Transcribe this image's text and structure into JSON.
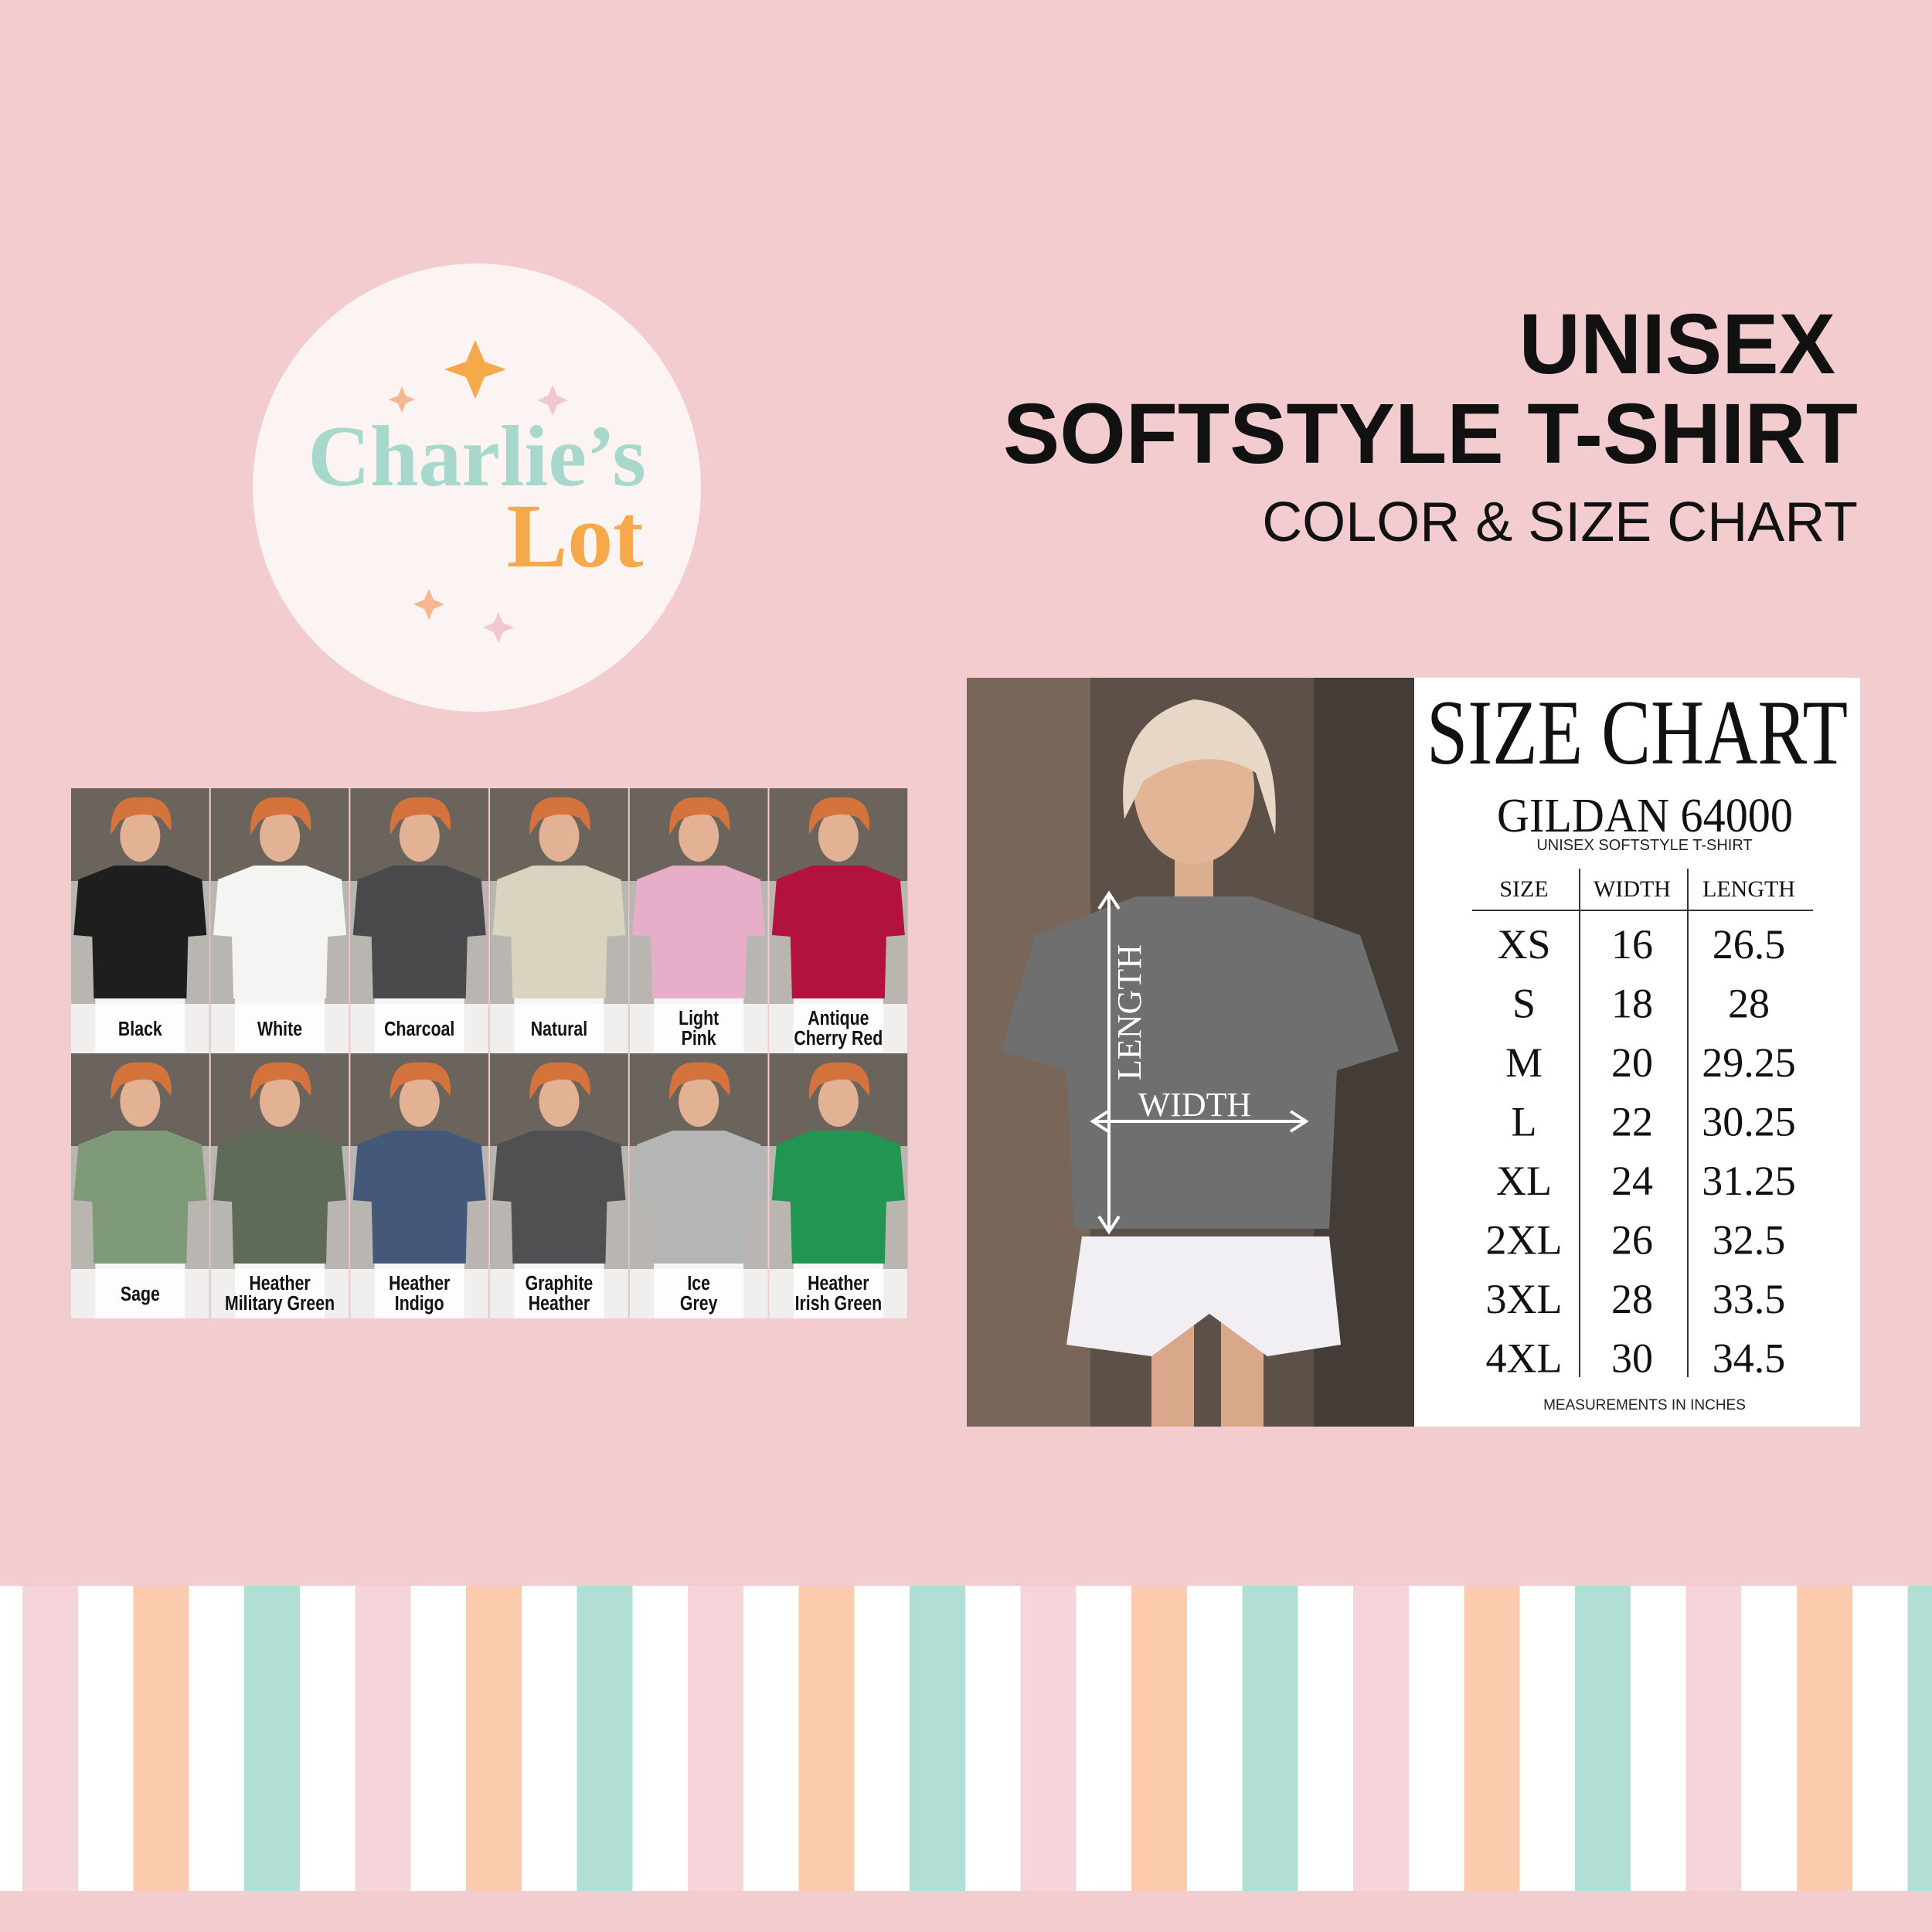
{
  "header": {
    "title_lines": [
      "UNISEX",
      "SOFTSTYLE T-SHIRT"
    ],
    "subtitle": "COLOR & SIZE CHART"
  },
  "logo": {
    "line1": "Charlie’s",
    "line2": "Lot"
  },
  "colors": [
    {
      "label": [
        "Black"
      ],
      "color": "#1e1e1e"
    },
    {
      "label": [
        "White"
      ],
      "color": "#f4f4f2"
    },
    {
      "label": [
        "Charcoal"
      ],
      "color": "#4a4a4c"
    },
    {
      "label": [
        "Natural"
      ],
      "color": "#d9d4c0"
    },
    {
      "label": [
        "Light",
        "Pink"
      ],
      "color": "#e6aec8"
    },
    {
      "label": [
        "Antique",
        "Cherry Red"
      ],
      "color": "#b3123f"
    },
    {
      "label": [
        "Sage"
      ],
      "color": "#7f9a78"
    },
    {
      "label": [
        "Heather",
        "Military Green"
      ],
      "color": "#5f6b58"
    },
    {
      "label": [
        "Heather",
        "Indigo"
      ],
      "color": "#44587a"
    },
    {
      "label": [
        "Graphite",
        "Heather"
      ],
      "color": "#505052"
    },
    {
      "label": [
        "Ice",
        "Grey"
      ],
      "color": "#b4b5b5"
    },
    {
      "label": [
        "Heather",
        "Irish Green"
      ],
      "color": "#229552"
    }
  ],
  "size_chart": {
    "title": "SIZE CHART",
    "brand": "GILDAN 64000",
    "product": "UNISEX SOFTSTYLE T-SHIRT",
    "annotations": {
      "length": "LENGTH",
      "width": "WIDTH"
    },
    "table": {
      "header": [
        "SIZE",
        "WIDTH",
        "LENGTH"
      ],
      "rows": [
        [
          "XS",
          16,
          26.5
        ],
        [
          "S",
          18,
          28
        ],
        [
          "M",
          20,
          29.25
        ],
        [
          "L",
          22,
          30.25
        ],
        [
          "XL",
          24,
          31.25
        ],
        [
          "2XL",
          26,
          32.5
        ],
        [
          "3XL",
          28,
          33.5
        ],
        [
          "4XL",
          30,
          34.5
        ]
      ]
    },
    "footer": "MEASUREMENTS IN INCHES"
  }
}
